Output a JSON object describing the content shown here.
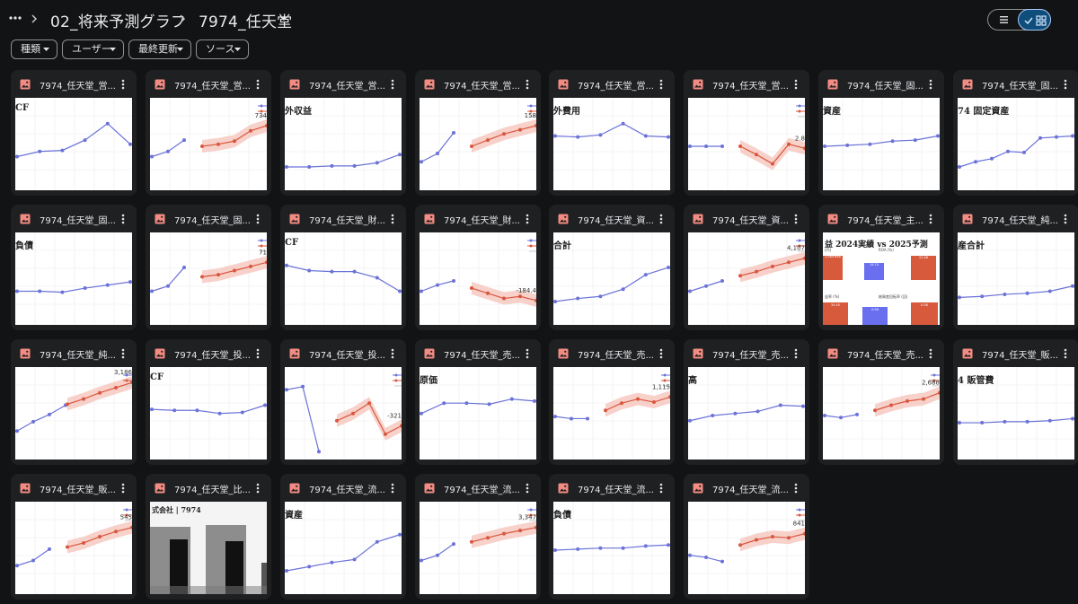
{
  "breadcrumb": {
    "folder": "02_将来予測グラフ",
    "current": "7974_任天堂"
  },
  "view_toggle": {
    "list_icon": "list-icon",
    "grid_icon": "grid-icon",
    "check_icon": "check-icon",
    "active": "grid"
  },
  "filters": [
    {
      "label": "種類"
    },
    {
      "label": "ユーザー"
    },
    {
      "label": "最終更新"
    },
    {
      "label": "ソース"
    }
  ],
  "colors": {
    "background": "#121314",
    "card": "#1f2022",
    "accent": "#a8c7fa",
    "image_icon": "#f28b82",
    "history_line": "#6b72d8",
    "forecast_line": "#d9573e",
    "forecast_band": "#f4c2b8"
  },
  "files": [
    {
      "name": "7974_任天堂_営...",
      "thumb": {
        "type": "hist",
        "title": "CF",
        "values": [
          3,
          3.5,
          3.6,
          4.6,
          6.2,
          4.2
        ]
      }
    },
    {
      "name": "7974_任天堂_営...",
      "thumb": {
        "type": "fc",
        "label": "734",
        "history": [
          3,
          3.5,
          4.6
        ],
        "forecast": [
          4,
          4.2,
          4.5,
          5.5,
          6
        ]
      }
    },
    {
      "name": "7974_任天堂_営...",
      "thumb": {
        "type": "hist",
        "title": "外収益",
        "values": [
          2,
          2,
          2.1,
          2.1,
          2.4,
          3.2
        ]
      }
    },
    {
      "name": "7974_任天堂_営...",
      "thumb": {
        "type": "fc",
        "label": "158",
        "history": [
          2.5,
          3.3,
          5.3
        ],
        "forecast": [
          4,
          4.6,
          5.2,
          5.6,
          6
        ]
      }
    },
    {
      "name": "7974_任天堂_営...",
      "thumb": {
        "type": "hist",
        "title": "外費用",
        "values": [
          5,
          4.9,
          5.1,
          6.2,
          5,
          4.9
        ]
      }
    },
    {
      "name": "7974_任天堂_営...",
      "thumb": {
        "type": "fc",
        "label": "2.8",
        "history": [
          4,
          4,
          4
        ],
        "forecast": [
          4,
          3.2,
          2.3,
          4.2,
          3.8
        ]
      }
    },
    {
      "name": "7974_任天堂_固...",
      "thumb": {
        "type": "hist",
        "title": "資産",
        "values": [
          4,
          4.1,
          4.2,
          4.5,
          4.6,
          5
        ]
      }
    },
    {
      "name": "7974_任天堂_固...",
      "thumb": {
        "type": "hist",
        "title": "74  固定資産",
        "values": [
          2,
          2.5,
          2.8,
          3.5,
          3.4,
          4.8,
          4.9,
          5
        ]
      }
    },
    {
      "name": "7974_任天堂_固...",
      "thumb": {
        "type": "hist",
        "title": "負債",
        "values": [
          3,
          3,
          2.9,
          3.3,
          3.6,
          3.9
        ]
      }
    },
    {
      "name": "7974_任天堂_固...",
      "thumb": {
        "type": "fc",
        "label": "71",
        "history": [
          3,
          3.5,
          5.3
        ],
        "forecast": [
          4.4,
          4.6,
          5,
          5.4,
          5.8
        ]
      }
    },
    {
      "name": "7974_任天堂_財...",
      "thumb": {
        "type": "hist",
        "title": "CF",
        "values": [
          5.5,
          5,
          4.9,
          4.9,
          4.3,
          3
        ]
      }
    },
    {
      "name": "7974_任天堂_財...",
      "thumb": {
        "type": "fc",
        "label": "-184.4",
        "history": [
          3,
          3.6,
          4
        ],
        "forecast": [
          3.3,
          2.8,
          2.3,
          2.5,
          2.1
        ]
      }
    },
    {
      "name": "7974_任天堂_資...",
      "thumb": {
        "type": "hist",
        "title": "合計",
        "values": [
          2,
          2.3,
          2.5,
          3.2,
          4.6,
          5.3
        ]
      }
    },
    {
      "name": "7974_任天堂_資...",
      "thumb": {
        "type": "fc",
        "label": "4,107",
        "history": [
          3,
          3.5,
          4
        ],
        "forecast": [
          4.5,
          4.9,
          5.4,
          5.8,
          6.2
        ]
      }
    },
    {
      "name": "7974_任天堂_主...",
      "thumb": {
        "type": "summary",
        "title": "益 2024実績 vs 2025予測",
        "panel_labels": [
          "(円)",
          "ROA (%)",
          "益率 (%)",
          "総資産回転率 (回)"
        ],
        "values": [
          "2,569.848",
          "19.74",
          "22.48",
          "34.45",
          "0.56",
          "0.58"
        ]
      }
    },
    {
      "name": "7974_任天堂_純...",
      "thumb": {
        "type": "hist",
        "title": "産合計",
        "values": [
          2.4,
          2.5,
          2.7,
          2.8,
          3,
          3.5
        ]
      }
    },
    {
      "name": "7974_任天堂_純...",
      "thumb": {
        "type": "fc",
        "label": "3,186",
        "history": [
          2.5,
          3.4,
          4.1,
          5
        ],
        "forecast": [
          5.1,
          5.6,
          6.2,
          6.7,
          7.2
        ]
      }
    },
    {
      "name": "7974_任天堂_投...",
      "thumb": {
        "type": "hist",
        "title": "CF",
        "values": [
          4.6,
          4.5,
          4.5,
          4.2,
          4.3,
          5
        ]
      }
    },
    {
      "name": "7974_任天堂_投...",
      "thumb": {
        "type": "fc",
        "label": "-321",
        "history": [
          6.5,
          6.8,
          0.5
        ],
        "forecast": [
          3.5,
          4.2,
          5.2,
          2.2,
          3
        ]
      }
    },
    {
      "name": "7974_任天堂_売...",
      "thumb": {
        "type": "hist",
        "title": "原価",
        "values": [
          4.2,
          5.2,
          5.2,
          5.1,
          5.6,
          5.4
        ]
      }
    },
    {
      "name": "7974_任天堂_売...",
      "thumb": {
        "type": "fc",
        "label": "1,115",
        "history": [
          3.9,
          3.7,
          3.7
        ],
        "forecast": [
          4.5,
          5.2,
          5.6,
          5.3,
          5.8
        ]
      }
    },
    {
      "name": "7974_任天堂_売...",
      "thumb": {
        "type": "hist",
        "title": "高",
        "values": [
          3.5,
          4,
          4.2,
          4.4,
          5,
          4.9
        ]
      }
    },
    {
      "name": "7974_任天堂_売...",
      "thumb": {
        "type": "fc",
        "label": "2,688",
        "history": [
          4,
          3.8,
          4.1
        ],
        "forecast": [
          4.5,
          5,
          5.4,
          5.6,
          6.2
        ]
      }
    },
    {
      "name": "7974_任天堂_販...",
      "thumb": {
        "type": "hist",
        "title": "4  販管費",
        "values": [
          3.3,
          3.3,
          3.4,
          3.4,
          3.5,
          3.7
        ]
      }
    },
    {
      "name": "7974_任天堂_販...",
      "thumb": {
        "type": "fc",
        "label": "545",
        "history": [
          2.5,
          3,
          4.1
        ],
        "forecast": [
          4.3,
          4.7,
          5.3,
          5.8,
          6.2
        ]
      }
    },
    {
      "name": "7974_任天堂_比...",
      "thumb": {
        "type": "bars",
        "title": "式会社 | 7974"
      }
    },
    {
      "name": "7974_任天堂_流...",
      "thumb": {
        "type": "hist",
        "title": "資産",
        "values": [
          2,
          2.4,
          2.8,
          3.1,
          4.8,
          5.5
        ]
      }
    },
    {
      "name": "7974_任天堂_流...",
      "thumb": {
        "type": "fc",
        "label": "3,347",
        "history": [
          3,
          3.5,
          4.6
        ],
        "forecast": [
          4.8,
          5.2,
          5.6,
          5.9,
          6.2
        ]
      }
    },
    {
      "name": "7974_任天堂_流...",
      "thumb": {
        "type": "hist",
        "title": "負債",
        "values": [
          4,
          4.1,
          4.2,
          4.2,
          4.4,
          4.5
        ]
      }
    },
    {
      "name": "7974_任天堂_流...",
      "thumb": {
        "type": "fc",
        "label": "841",
        "history": [
          3.5,
          3.3,
          2.9
        ],
        "forecast": [
          4.5,
          5,
          5.3,
          5.2,
          5.6
        ]
      }
    }
  ]
}
